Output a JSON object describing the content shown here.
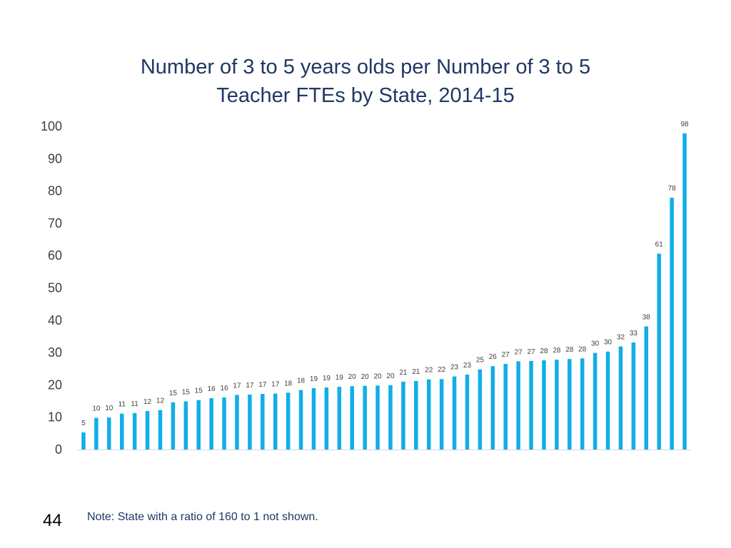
{
  "chart_data": {
    "type": "bar",
    "title_line1": "Number of 3 to 5 years olds per Number of 3 to 5",
    "title_line2": "Teacher FTEs by State, 2014-15",
    "ylim": [
      0,
      100
    ],
    "yticks": [
      0,
      10,
      20,
      30,
      40,
      50,
      60,
      70,
      80,
      90,
      100
    ],
    "values": [
      5.3,
      9.8,
      9.9,
      11.1,
      11.3,
      11.9,
      12.2,
      14.6,
      14.9,
      15.3,
      15.9,
      16.1,
      16.9,
      17.0,
      17.2,
      17.3,
      17.6,
      18.4,
      19.0,
      19.2,
      19.4,
      19.6,
      19.7,
      19.8,
      19.9,
      21.0,
      21.2,
      21.7,
      21.8,
      22.6,
      23.2,
      24.8,
      25.8,
      26.5,
      27.3,
      27.4,
      27.6,
      27.8,
      28.0,
      28.2,
      29.9,
      30.3,
      31.9,
      33.1,
      38.1,
      60.6,
      77.9,
      97.8
    ],
    "labels": [
      "5",
      "10",
      "10",
      "11",
      "11",
      "12",
      "12",
      "15",
      "15",
      "15",
      "16",
      "16",
      "17",
      "17",
      "17",
      "17",
      "18",
      "18",
      "19",
      "19",
      "19",
      "20",
      "20",
      "20",
      "20",
      "21",
      "21",
      "22",
      "22",
      "23",
      "23",
      "25",
      "26",
      "27",
      "27",
      "27",
      "28",
      "28",
      "28",
      "28",
      "30",
      "30",
      "32",
      "33",
      "38",
      "61",
      "78",
      "98"
    ],
    "bar_color": "#11aee8"
  },
  "footer": {
    "page_number": "44",
    "note": "Note:  State with a ratio of 160 to 1 not shown."
  }
}
